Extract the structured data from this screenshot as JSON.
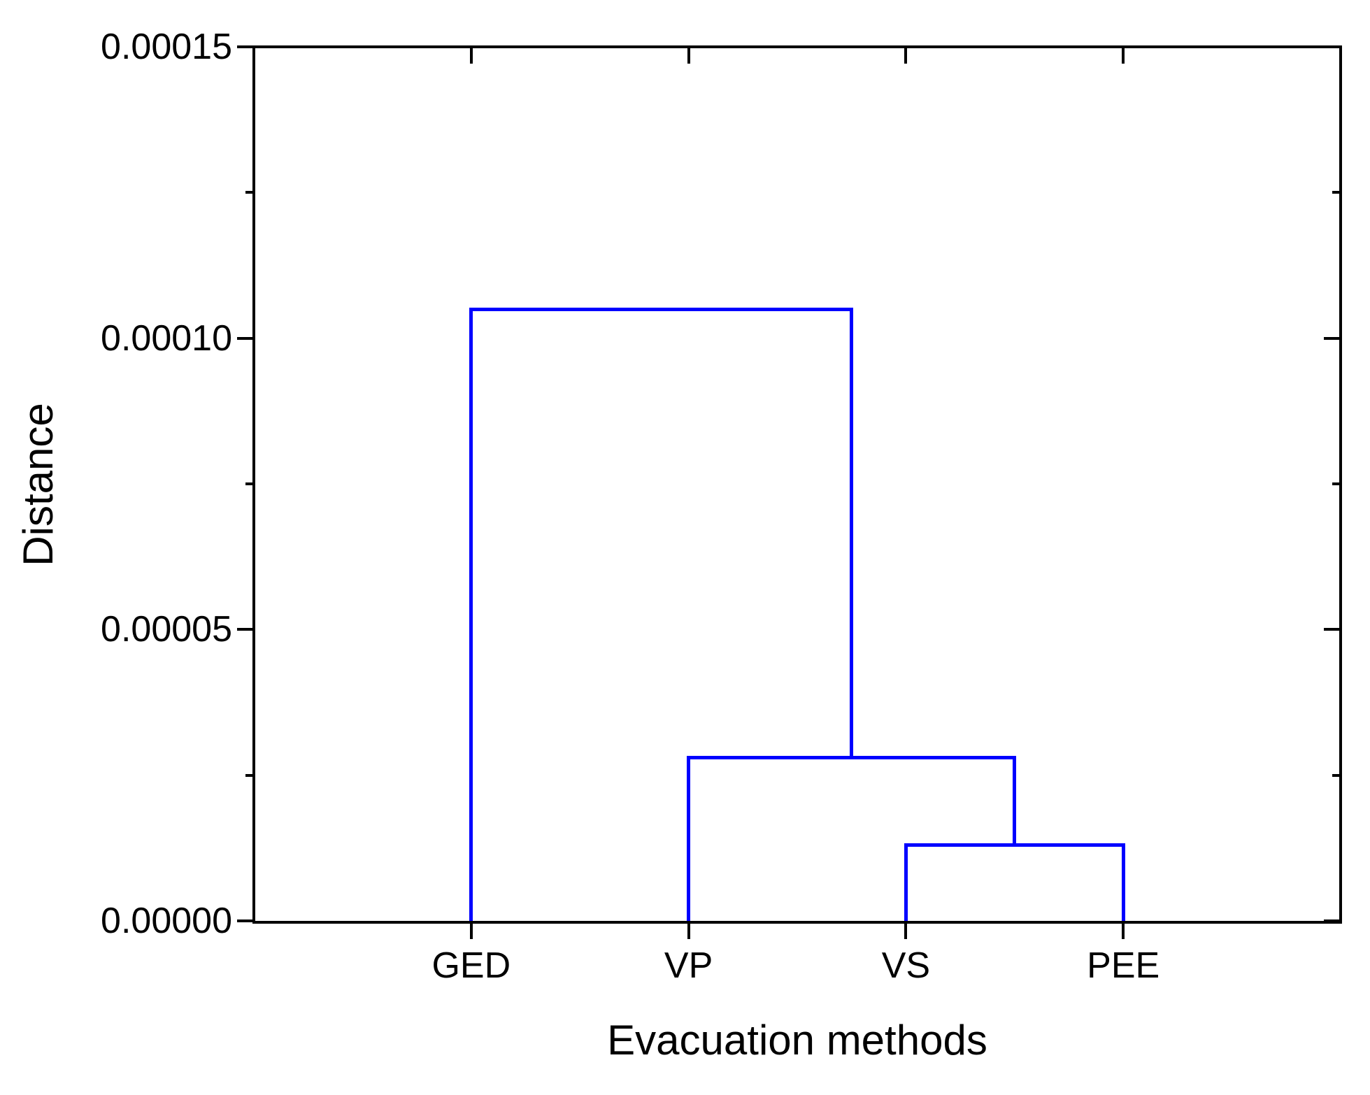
{
  "figure": {
    "background_color": "#ffffff",
    "axis_color": "#000000",
    "dendrogram_line_color": "#0000ff",
    "text_color": "#000000"
  },
  "chart_data": {
    "type": "dendrogram",
    "title": "",
    "xlabel": "Evacuation methods",
    "ylabel": "Distance",
    "categories": [
      "GED",
      "VP",
      "VS",
      "PEE"
    ],
    "ylim": [
      0,
      0.00015
    ],
    "grid": false,
    "legend": null,
    "y_major_ticks": [
      {
        "value": 0.00015,
        "label": "0.00015"
      },
      {
        "value": 0.0001,
        "label": "0.00010"
      },
      {
        "value": 5e-05,
        "label": "0.00005"
      },
      {
        "value": 0.0,
        "label": "0.00000"
      }
    ],
    "y_minor_ticks": [
      0.000125,
      7.5e-05,
      2.5e-05
    ],
    "merges": [
      {
        "joins": [
          "VS",
          "PEE"
        ],
        "distance": 1.3e-05
      },
      {
        "joins": [
          "VP",
          "VS+PEE"
        ],
        "distance": 2.8e-05
      },
      {
        "joins": [
          "GED",
          "VP+VS+PEE"
        ],
        "distance": 0.000105
      }
    ],
    "tree": {
      "distance": 0.000105,
      "children": [
        {
          "leaf": "GED"
        },
        {
          "distance": 2.8e-05,
          "children": [
            {
              "leaf": "VP"
            },
            {
              "distance": 1.3e-05,
              "children": [
                {
                  "leaf": "VS"
                },
                {
                  "leaf": "PEE"
                }
              ]
            }
          ]
        }
      ]
    }
  }
}
